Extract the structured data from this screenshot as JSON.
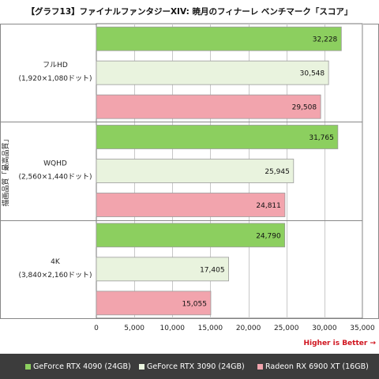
{
  "chart_data": {
    "type": "bar",
    "orientation": "horizontal",
    "title": "【グラフ13】ファイナルファンタジーXIV: 暁月のフィナーレ ベンチマーク「スコア」",
    "ylabel": "描画品質「最高品質」",
    "categories": [
      {
        "name": "フルHD",
        "sub": "(1,920×1,080ドット)"
      },
      {
        "name": "WQHD",
        "sub": "(2,560×1,440ドット)"
      },
      {
        "name": "4K",
        "sub": "(3,840×2,160ドット)"
      }
    ],
    "series": [
      {
        "name": "GeForce RTX 4090 (24GB)",
        "color": "#8ccf5f",
        "values": [
          32228,
          31765,
          24790
        ],
        "labels": [
          "32,228",
          "31,765",
          "24,790"
        ]
      },
      {
        "name": "GeForce RTX 3090 (24GB)",
        "color": "#e9f3de",
        "values": [
          30548,
          25945,
          17405
        ],
        "labels": [
          "30,548",
          "25,945",
          "17,405"
        ]
      },
      {
        "name": "Radeon RX 6900 XT (16GB)",
        "color": "#f2a4ad",
        "values": [
          29508,
          24811,
          15055
        ],
        "labels": [
          "29,508",
          "24,811",
          "15,055"
        ]
      }
    ],
    "xlim": [
      0,
      35000
    ],
    "xticks": [
      0,
      5000,
      10000,
      15000,
      20000,
      25000,
      30000,
      35000
    ],
    "xtick_labels": [
      "0",
      "5,000",
      "10,000",
      "15,000",
      "20,000",
      "25,000",
      "30,000",
      "35,000"
    ],
    "annotation": "Higher is Better →",
    "grid": true,
    "legend_position": "bottom"
  }
}
